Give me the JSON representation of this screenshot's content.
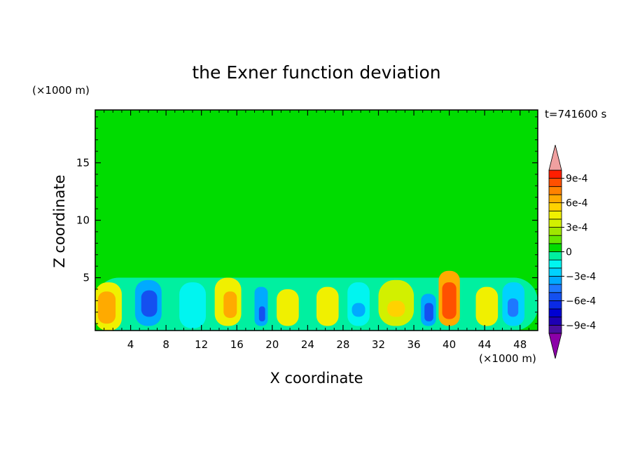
{
  "chart_data": {
    "type": "heatmap",
    "title": "the Exner function deviation",
    "xlabel": "X coordinate",
    "ylabel": "Z coordinate",
    "x_unit": "(×1000 m)",
    "y_unit": "(×1000 m)",
    "time_label": "t=741600 s",
    "xlim": [
      0,
      50
    ],
    "ylim": [
      0.4,
      19.6
    ],
    "x_ticks": [
      4,
      8,
      12,
      16,
      20,
      24,
      28,
      32,
      36,
      40,
      44,
      48
    ],
    "x_tick_labels": [
      "4",
      "8",
      "12",
      "16",
      "20",
      "24",
      "28",
      "32",
      "36",
      "40",
      "44",
      "48"
    ],
    "y_ticks": [
      5,
      10,
      15
    ],
    "y_tick_labels": [
      "5",
      "10",
      "15"
    ],
    "colorbar": {
      "min": -0.0011,
      "max": 0.0011,
      "step": 0.0001,
      "levels": [
        -0.0011,
        -0.001,
        -0.0009,
        -0.0008,
        -0.0007,
        -0.0006,
        -0.0005,
        -0.0004,
        -0.0003,
        -0.0002,
        -0.0001,
        0,
        0.0001,
        0.0002,
        0.0003,
        0.0004,
        0.0005,
        0.0006,
        0.0007,
        0.0008,
        0.0009,
        0.001,
        0.0011
      ],
      "tick_values": [
        0.0009,
        0.0006,
        0.0003,
        0,
        -0.0003,
        -0.0006,
        -0.0009
      ],
      "tick_labels": [
        "9e-4",
        "6e-4",
        "3e-4",
        "0",
        "−3e-4",
        "−6e-4",
        "−9e-4"
      ],
      "colors": [
        "#8c00a8",
        "#4b0fa0",
        "#1e00b4",
        "#0000d2",
        "#0a2ae6",
        "#1450f0",
        "#1e78ff",
        "#00aaff",
        "#00d2ff",
        "#00f5f0",
        "#00f0a0",
        "#00dc00",
        "#64e600",
        "#a0e600",
        "#d2f000",
        "#f0f000",
        "#ffd200",
        "#ffaa00",
        "#ff8200",
        "#ff5000",
        "#ff1e00",
        "#e60000",
        "#f0a0a0"
      ],
      "over_color": "#f0a0a0",
      "under_color": "#8c00a8"
    },
    "cells": [
      {
        "x": [
          0,
          50
        ],
        "z": [
          0.4,
          19.6
        ],
        "v": 0.0
      },
      {
        "x": [
          5,
          34
        ],
        "z": [
          14.2,
          19.6
        ],
        "v": 5e-05
      },
      {
        "x": [
          34,
          50
        ],
        "z": [
          8.5,
          14.2
        ],
        "v": 5e-05
      },
      {
        "x": [
          0,
          50
        ],
        "z": [
          6.0,
          10.0
        ],
        "v": 5e-05
      },
      {
        "x": [
          3,
          10
        ],
        "z": [
          8.5,
          12.0
        ],
        "v": 5e-05
      },
      {
        "x": [
          0,
          50
        ],
        "z": [
          0.4,
          5.0
        ],
        "v": -5e-05
      },
      {
        "x": [
          0,
          3
        ],
        "z": [
          0.4,
          4.6
        ],
        "v": 0.0004
      },
      {
        "x": [
          0.3,
          2.3
        ],
        "z": [
          1.0,
          3.8
        ],
        "v": 0.0006
      },
      {
        "x": [
          4.5,
          7.5
        ],
        "z": [
          0.8,
          4.8
        ],
        "v": -0.0004
      },
      {
        "x": [
          5.2,
          7.0
        ],
        "z": [
          1.6,
          3.9
        ],
        "v": -0.0006
      },
      {
        "x": [
          9.5,
          12.5
        ],
        "z": [
          0.6,
          4.6
        ],
        "v": -0.0002
      },
      {
        "x": [
          13.5,
          16.5
        ],
        "z": [
          0.8,
          5.0
        ],
        "v": 0.0004
      },
      {
        "x": [
          14.5,
          16.0
        ],
        "z": [
          1.5,
          3.8
        ],
        "v": 0.0006
      },
      {
        "x": [
          18.0,
          19.5
        ],
        "z": [
          0.8,
          4.2
        ],
        "v": -0.0004
      },
      {
        "x": [
          18.5,
          19.2
        ],
        "z": [
          1.2,
          2.5
        ],
        "v": -0.0006
      },
      {
        "x": [
          20.5,
          23.0
        ],
        "z": [
          0.8,
          4.0
        ],
        "v": 0.0004
      },
      {
        "x": [
          25.0,
          27.5
        ],
        "z": [
          0.8,
          4.2
        ],
        "v": 0.0004
      },
      {
        "x": [
          28.5,
          31.0
        ],
        "z": [
          0.8,
          4.6
        ],
        "v": -0.0002
      },
      {
        "x": [
          29.0,
          30.5
        ],
        "z": [
          1.6,
          2.8
        ],
        "v": -0.0004
      },
      {
        "x": [
          32.0,
          36.0
        ],
        "z": [
          0.8,
          4.8
        ],
        "v": 0.0003
      },
      {
        "x": [
          33.0,
          35.0
        ],
        "z": [
          1.6,
          3.0
        ],
        "v": 0.0005
      },
      {
        "x": [
          36.8,
          38.5
        ],
        "z": [
          0.8,
          3.6
        ],
        "v": -0.0004
      },
      {
        "x": [
          37.2,
          38.2
        ],
        "z": [
          1.2,
          2.8
        ],
        "v": -0.0006
      },
      {
        "x": [
          38.8,
          41.2
        ],
        "z": [
          0.8,
          5.6
        ],
        "v": 0.0006
      },
      {
        "x": [
          39.2,
          40.8
        ],
        "z": [
          1.4,
          4.6
        ],
        "v": 0.0008
      },
      {
        "x": [
          43.0,
          45.5
        ],
        "z": [
          0.8,
          4.2
        ],
        "v": 0.0004
      },
      {
        "x": [
          46.0,
          48.5
        ],
        "z": [
          0.8,
          4.6
        ],
        "v": -0.0003
      },
      {
        "x": [
          46.6,
          47.8
        ],
        "z": [
          1.6,
          3.2
        ],
        "v": -0.0005
      }
    ]
  }
}
